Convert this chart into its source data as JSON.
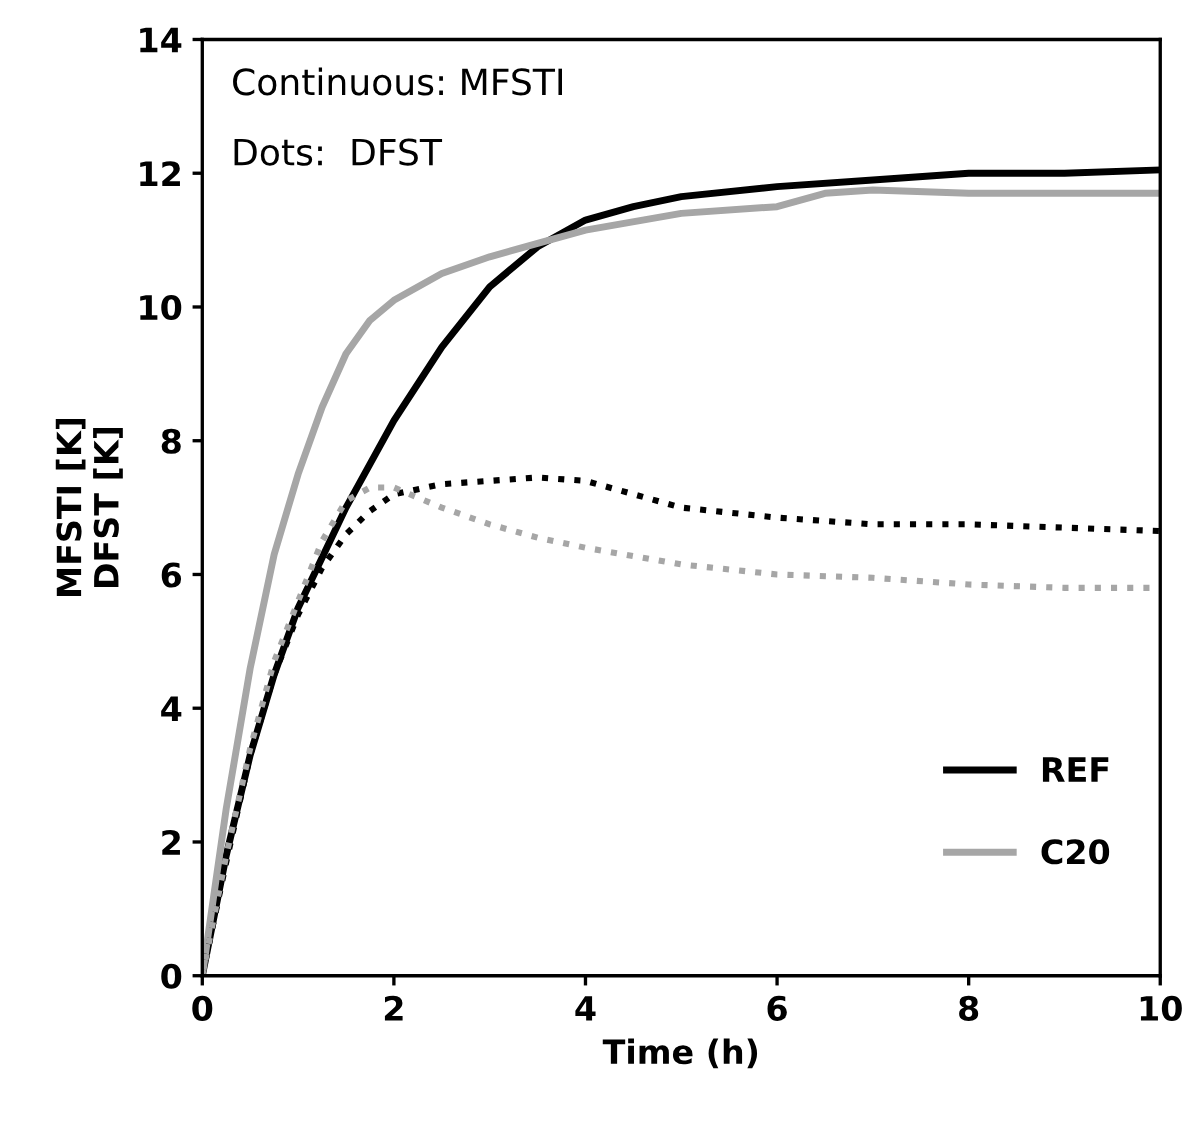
{
  "chart_data": {
    "type": "line",
    "xlabel": "Time (h)",
    "ylabel": "MFSTI [K]\nDFST [K]",
    "annotations": [
      "Continuous: MFSTI",
      "Dots:  DFST"
    ],
    "xlim": [
      0,
      10
    ],
    "ylim": [
      0,
      14
    ],
    "xticks": [
      0,
      2,
      4,
      6,
      8,
      10
    ],
    "yticks": [
      0,
      2,
      4,
      6,
      8,
      10,
      12,
      14
    ],
    "grid": false,
    "legend": "bottom right",
    "marker": "none",
    "series": [
      {
        "name": "REF",
        "color": "#000000",
        "line_style": "solid",
        "x": [
          0,
          0.25,
          0.5,
          0.75,
          1,
          1.5,
          2,
          2.5,
          3,
          3.5,
          4,
          4.5,
          5,
          6,
          7,
          8,
          9,
          10
        ],
        "values": [
          0,
          1.8,
          3.3,
          4.5,
          5.5,
          7.0,
          8.3,
          9.4,
          10.3,
          10.9,
          11.3,
          11.5,
          11.65,
          11.8,
          11.9,
          12.0,
          12.0,
          12.05
        ]
      },
      {
        "name": "C20",
        "color": "#a6a6a6",
        "line_style": "solid",
        "x": [
          0,
          0.25,
          0.5,
          0.75,
          1,
          1.25,
          1.5,
          1.75,
          2,
          2.5,
          3,
          3.5,
          4,
          5,
          6,
          6.5,
          7,
          8,
          9,
          10
        ],
        "values": [
          0,
          2.5,
          4.6,
          6.3,
          7.5,
          8.5,
          9.3,
          9.8,
          10.1,
          10.5,
          10.75,
          10.95,
          11.15,
          11.4,
          11.5,
          11.7,
          11.75,
          11.7,
          11.7,
          11.7
        ]
      },
      {
        "color": "#000000",
        "line_style": "dotted",
        "x": [
          0,
          0.25,
          0.5,
          0.75,
          1,
          1.25,
          1.5,
          1.75,
          2,
          2.5,
          3,
          3.5,
          4,
          4.5,
          5,
          6,
          7,
          8,
          9,
          10
        ],
        "values": [
          0,
          1.7,
          3.3,
          4.5,
          5.4,
          6.1,
          6.6,
          6.95,
          7.2,
          7.35,
          7.4,
          7.45,
          7.4,
          7.2,
          7.0,
          6.85,
          6.75,
          6.75,
          6.7,
          6.65
        ]
      },
      {
        "color": "#a6a6a6",
        "line_style": "dotted",
        "x": [
          0,
          0.25,
          0.5,
          0.75,
          1,
          1.25,
          1.5,
          1.75,
          2,
          2.5,
          3,
          3.5,
          4,
          5,
          6,
          7,
          8,
          9,
          10
        ],
        "values": [
          0,
          1.8,
          3.4,
          4.7,
          5.6,
          6.5,
          7.1,
          7.3,
          7.3,
          7.0,
          6.75,
          6.55,
          6.4,
          6.15,
          6.0,
          5.95,
          5.85,
          5.8,
          5.8
        ]
      }
    ]
  }
}
